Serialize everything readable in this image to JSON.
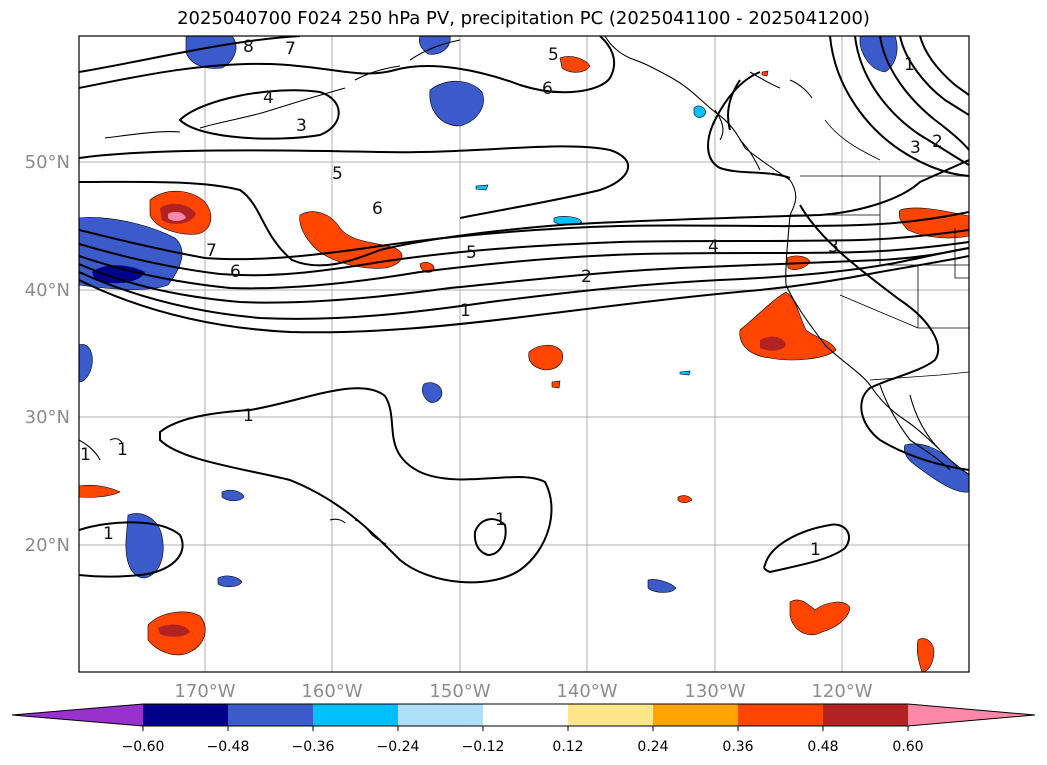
{
  "title": "2025040700 F024 250 hPa PV, precipitation PC (2025041100 - 2025041200)",
  "lat_ticks": [
    "50°N",
    "40°N",
    "30°N",
    "20°N"
  ],
  "lon_ticks": [
    "170°W",
    "160°W",
    "150°W",
    "140°W",
    "130°W",
    "120°W"
  ],
  "contour_labels": [
    "8",
    "7",
    "5",
    "6",
    "4",
    "3",
    "5",
    "6",
    "7",
    "6",
    "5",
    "4",
    "3",
    "2",
    "1",
    "1",
    "1",
    "1",
    "1",
    "1",
    "3",
    "2",
    "1",
    "1"
  ],
  "colorbar": {
    "tick_labels": [
      "−0.60",
      "−0.48",
      "−0.36",
      "−0.24",
      "−0.12",
      "0.12",
      "0.24",
      "0.36",
      "0.48",
      "0.60"
    ],
    "colors": [
      "#9932cc",
      "#00008b",
      "#3a5bc9",
      "#00bfff",
      "#aee0fa",
      "#ffffff",
      "#fde68a",
      "#ffa500",
      "#ff4500",
      "#b22222",
      "#ff88a8"
    ]
  }
}
